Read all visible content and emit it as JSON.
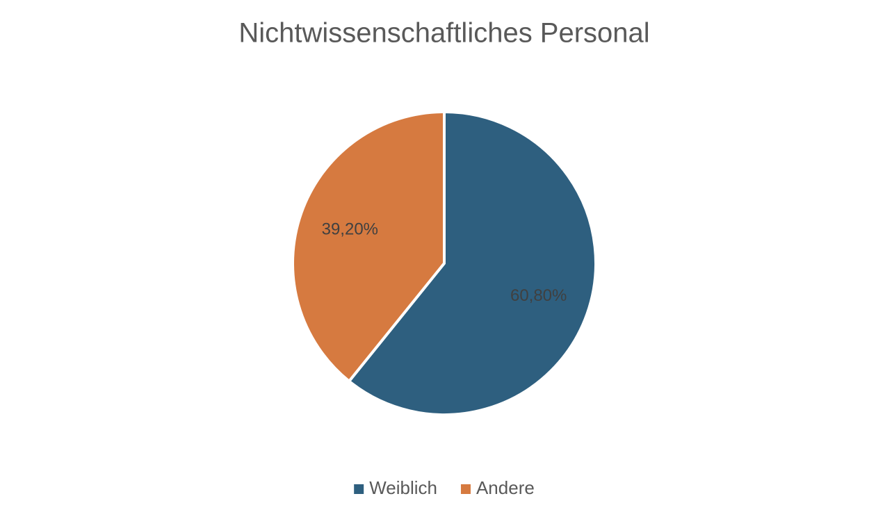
{
  "chart_data": {
    "type": "pie",
    "title": "Nichtwissenschaftliches Personal",
    "categories": [
      "Weiblich",
      "Andere"
    ],
    "values": [
      60.8,
      39.2
    ],
    "value_labels": [
      "60,80%",
      "39,20%"
    ],
    "colors": [
      "#2e5f7f",
      "#d67a40"
    ],
    "legend": "bottom"
  }
}
